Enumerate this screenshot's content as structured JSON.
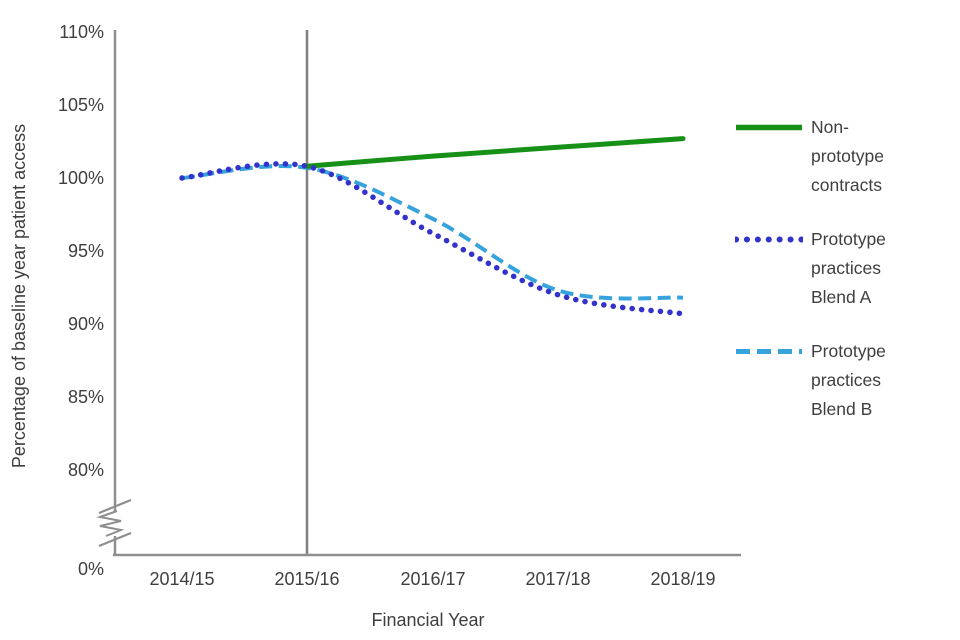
{
  "colors": {
    "background": "#ffffff",
    "axis": "#8f8f8f",
    "reference_line": "#7f7f7f",
    "text": "#3f3f3f",
    "green": "#169016",
    "dark_blue": "#3333cc",
    "light_blue": "#36a3dc"
  },
  "chart_data": {
    "type": "line",
    "title": "",
    "xlabel": "Financial Year",
    "ylabel": "Percentage of baseline year patient access",
    "categories": [
      "2014/15",
      "2015/16",
      "2016/17",
      "2017/18",
      "2018/19"
    ],
    "y_axis": {
      "ticks": [
        "110%",
        "105%",
        "100%",
        "95%",
        "90%",
        "85%",
        "80%"
      ],
      "break_tick": "0%",
      "axis_break": true,
      "ylim_display": [
        80,
        110
      ]
    },
    "grid": "off",
    "legend_position": "right",
    "reference_line_at": "2015/16",
    "series": [
      {
        "name": "Non-prototype contracts",
        "style": "solid",
        "color": "#169016",
        "values": [
          null,
          100.8,
          101.5,
          102.1,
          102.7
        ]
      },
      {
        "name": "Prototype practices Blend A",
        "style": "dotted",
        "color": "#3333cc",
        "values": [
          100.0,
          100.8,
          96.2,
          92.0,
          90.7
        ]
      },
      {
        "name": "Prototype practices Blend B",
        "style": "dashed",
        "color": "#36a3dc",
        "values": [
          100.0,
          100.7,
          97.2,
          92.3,
          91.8
        ]
      }
    ]
  }
}
